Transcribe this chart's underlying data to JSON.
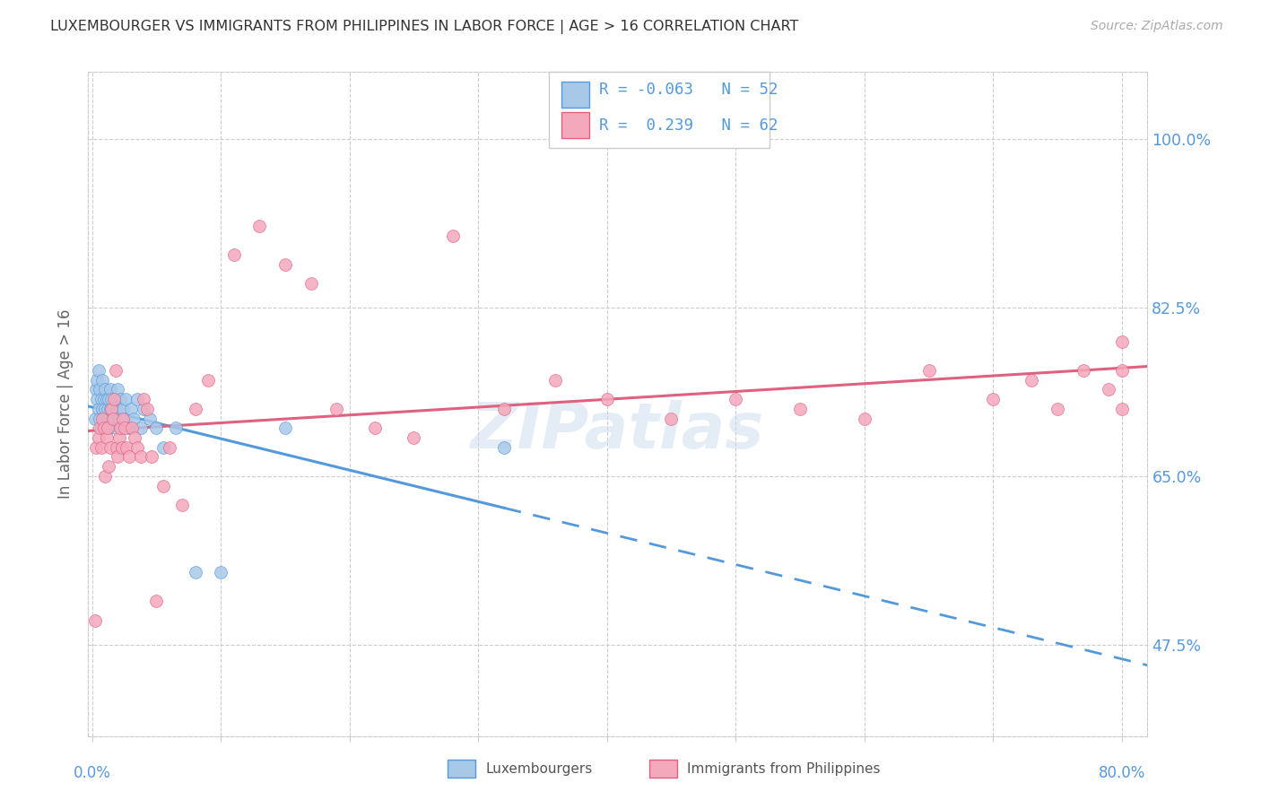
{
  "title": "LUXEMBOURGER VS IMMIGRANTS FROM PHILIPPINES IN LABOR FORCE | AGE > 16 CORRELATION CHART",
  "source": "Source: ZipAtlas.com",
  "ylabel": "In Labor Force | Age > 16",
  "ytick_labels": [
    "100.0%",
    "82.5%",
    "65.0%",
    "47.5%"
  ],
  "ytick_values": [
    1.0,
    0.825,
    0.65,
    0.475
  ],
  "ylim": [
    0.38,
    1.07
  ],
  "xlim": [
    -0.003,
    0.82
  ],
  "blue_R": "-0.063",
  "blue_N": "52",
  "pink_R": "0.239",
  "pink_N": "62",
  "blue_color": "#a8c8e8",
  "pink_color": "#f4a8bc",
  "blue_line_color": "#5599dd",
  "pink_line_color": "#e06080",
  "title_color": "#333333",
  "axis_color": "#5599dd",
  "grid_color": "#cccccc",
  "watermark": "ZIPatlas",
  "blue_scatter_x": [
    0.002,
    0.003,
    0.004,
    0.004,
    0.005,
    0.005,
    0.006,
    0.006,
    0.007,
    0.007,
    0.008,
    0.008,
    0.009,
    0.009,
    0.01,
    0.01,
    0.011,
    0.011,
    0.012,
    0.012,
    0.013,
    0.013,
    0.014,
    0.014,
    0.015,
    0.015,
    0.016,
    0.017,
    0.018,
    0.018,
    0.019,
    0.02,
    0.021,
    0.022,
    0.023,
    0.024,
    0.025,
    0.026,
    0.028,
    0.03,
    0.032,
    0.035,
    0.038,
    0.04,
    0.045,
    0.05,
    0.055,
    0.065,
    0.08,
    0.1,
    0.15,
    0.32
  ],
  "blue_scatter_y": [
    0.71,
    0.74,
    0.73,
    0.75,
    0.72,
    0.76,
    0.71,
    0.74,
    0.73,
    0.7,
    0.72,
    0.75,
    0.73,
    0.71,
    0.72,
    0.74,
    0.7,
    0.73,
    0.71,
    0.72,
    0.73,
    0.7,
    0.72,
    0.74,
    0.71,
    0.73,
    0.72,
    0.71,
    0.73,
    0.7,
    0.72,
    0.74,
    0.71,
    0.73,
    0.7,
    0.72,
    0.71,
    0.73,
    0.7,
    0.72,
    0.71,
    0.73,
    0.7,
    0.72,
    0.71,
    0.7,
    0.68,
    0.7,
    0.55,
    0.55,
    0.7,
    0.68
  ],
  "pink_scatter_x": [
    0.002,
    0.003,
    0.005,
    0.006,
    0.007,
    0.008,
    0.009,
    0.01,
    0.011,
    0.012,
    0.013,
    0.014,
    0.015,
    0.016,
    0.017,
    0.018,
    0.019,
    0.02,
    0.021,
    0.022,
    0.023,
    0.024,
    0.025,
    0.027,
    0.029,
    0.031,
    0.033,
    0.035,
    0.038,
    0.04,
    0.043,
    0.046,
    0.05,
    0.055,
    0.06,
    0.07,
    0.08,
    0.09,
    0.11,
    0.13,
    0.15,
    0.17,
    0.19,
    0.22,
    0.25,
    0.28,
    0.32,
    0.36,
    0.4,
    0.45,
    0.5,
    0.55,
    0.6,
    0.65,
    0.7,
    0.73,
    0.75,
    0.77,
    0.79,
    0.8,
    0.8,
    0.8
  ],
  "pink_scatter_y": [
    0.5,
    0.68,
    0.69,
    0.7,
    0.68,
    0.71,
    0.7,
    0.65,
    0.69,
    0.7,
    0.66,
    0.68,
    0.72,
    0.71,
    0.73,
    0.76,
    0.68,
    0.67,
    0.69,
    0.7,
    0.68,
    0.71,
    0.7,
    0.68,
    0.67,
    0.7,
    0.69,
    0.68,
    0.67,
    0.73,
    0.72,
    0.67,
    0.52,
    0.64,
    0.68,
    0.62,
    0.72,
    0.75,
    0.88,
    0.91,
    0.87,
    0.85,
    0.72,
    0.7,
    0.69,
    0.9,
    0.72,
    0.75,
    0.73,
    0.71,
    0.73,
    0.72,
    0.71,
    0.76,
    0.73,
    0.75,
    0.72,
    0.76,
    0.74,
    0.76,
    0.72,
    0.79
  ]
}
